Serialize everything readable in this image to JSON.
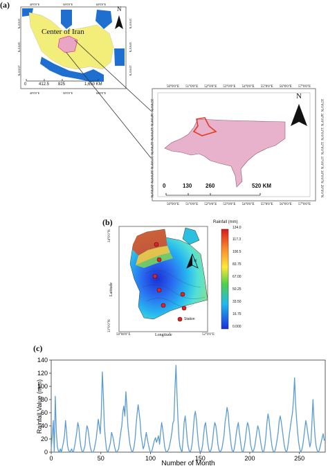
{
  "panel_a": {
    "label": "(a)",
    "inset_label": "Center of Iran",
    "inset_scale": [
      "0",
      "412.5",
      "825",
      "1,650 KM"
    ],
    "inset_lon_ticks": [
      "40°0'0\"E",
      "50°0'0\"E",
      "60°0'0\"E"
    ],
    "inset_lat_ticks": [
      "35°0'0\"N",
      "30°0'0\"N",
      "25°0'0\"N"
    ],
    "north": "N",
    "main_lon_ticks": [
      "50°0'0\"E",
      "51°0'0\"E",
      "52°0'0\"E",
      "53°0'0\"E",
      "54°0'0\"E",
      "55°0'0\"E",
      "56°0'0\"E",
      "57°0'0\"E"
    ],
    "main_lat_ticks": [
      "35°0'0\"N",
      "34°0'0\"N",
      "33°0'0\"N",
      "32°0'0\"N",
      "31°0'0\"N",
      "30°0'0\"N",
      "29°0'0\"N"
    ],
    "main_scale": [
      "0",
      "130",
      "260",
      "520 KM"
    ]
  },
  "panel_b": {
    "label": "(b)",
    "legend_title": "Rainfall (mm)",
    "legend_values": [
      "134.0",
      "117.3",
      "100.5",
      "83.75",
      "67.00",
      "50.25",
      "33.50",
      "16.75",
      "0.000"
    ],
    "ylabel": "Latitude",
    "xlabel": "Longitude",
    "lat_top": "34°0'0\"N",
    "lat_bottom": "33°0'0\"N",
    "lon_left": "50°80'0\"E",
    "lon_right": "52°0'0\"E",
    "station_label": "Station",
    "north": "N"
  },
  "panel_c": {
    "label": "(c)"
  },
  "chart_data": {
    "type": "line",
    "title": "",
    "xlabel": "Number of Month",
    "ylabel": "Rainfall Value (mm)",
    "xlim": [
      0,
      276
    ],
    "ylim": [
      0,
      140
    ],
    "xticks": [
      0,
      50,
      100,
      150,
      200,
      250
    ],
    "yticks": [
      0,
      20,
      40,
      60,
      80,
      100,
      120,
      140
    ],
    "grid": false,
    "color": "#5b9bd5",
    "series": [
      {
        "values": [
          5,
          25,
          48,
          0,
          85,
          30,
          8,
          2,
          0,
          5,
          0,
          8,
          15,
          25,
          48,
          30,
          10,
          3,
          0,
          2,
          5,
          0,
          2,
          10,
          20,
          30,
          45,
          38,
          20,
          8,
          2,
          0,
          4,
          10,
          28,
          40,
          35,
          22,
          10,
          3,
          0,
          0,
          4,
          12,
          20,
          35,
          50,
          40,
          28,
          60,
          122,
          85,
          40,
          20,
          5,
          0,
          2,
          8,
          15,
          30,
          25,
          18,
          8,
          2,
          0,
          2,
          5,
          18,
          30,
          40,
          60,
          70,
          55,
          92,
          70,
          40,
          25,
          12,
          5,
          0,
          2,
          8,
          20,
          40,
          58,
          72,
          60,
          45,
          25,
          15,
          5,
          10,
          20,
          30,
          20,
          12,
          5,
          0,
          0,
          5,
          12,
          18,
          22,
          15,
          20,
          25,
          12,
          30,
          45,
          35,
          22,
          8,
          2,
          0,
          2,
          5,
          12,
          20,
          30,
          44,
          48,
          95,
          132,
          90,
          50,
          20,
          8,
          3,
          0,
          20,
          45,
          55,
          40,
          20,
          8,
          2,
          0,
          5,
          15,
          35,
          55,
          62,
          50,
          30,
          12,
          3,
          0,
          2,
          10,
          25,
          40,
          45,
          30,
          15,
          5,
          0,
          2,
          8,
          20,
          35,
          45,
          40,
          28,
          12,
          4,
          0,
          2,
          6,
          15,
          25,
          45,
          55,
          68,
          60,
          40,
          25,
          10,
          3,
          0,
          5,
          15,
          28,
          38,
          45,
          30,
          18,
          6,
          0,
          2,
          10,
          20,
          35,
          45,
          40,
          28,
          12,
          5,
          0,
          3,
          8,
          18,
          30,
          40,
          35,
          25,
          14,
          5,
          0,
          2,
          10,
          25,
          45,
          58,
          50,
          35,
          20,
          8,
          2,
          0,
          3,
          10,
          20,
          30,
          48,
          55,
          45,
          35,
          22,
          10,
          3,
          0,
          4,
          15,
          28,
          40,
          50,
          60,
          80,
          113,
          75,
          50,
          30,
          15,
          5,
          0,
          3,
          10,
          22,
          35,
          48,
          40,
          28,
          18,
          8,
          15,
          45,
          80,
          50,
          25,
          10,
          3,
          0,
          2,
          8,
          15,
          22,
          28,
          18,
          20
        ]
      }
    ]
  }
}
